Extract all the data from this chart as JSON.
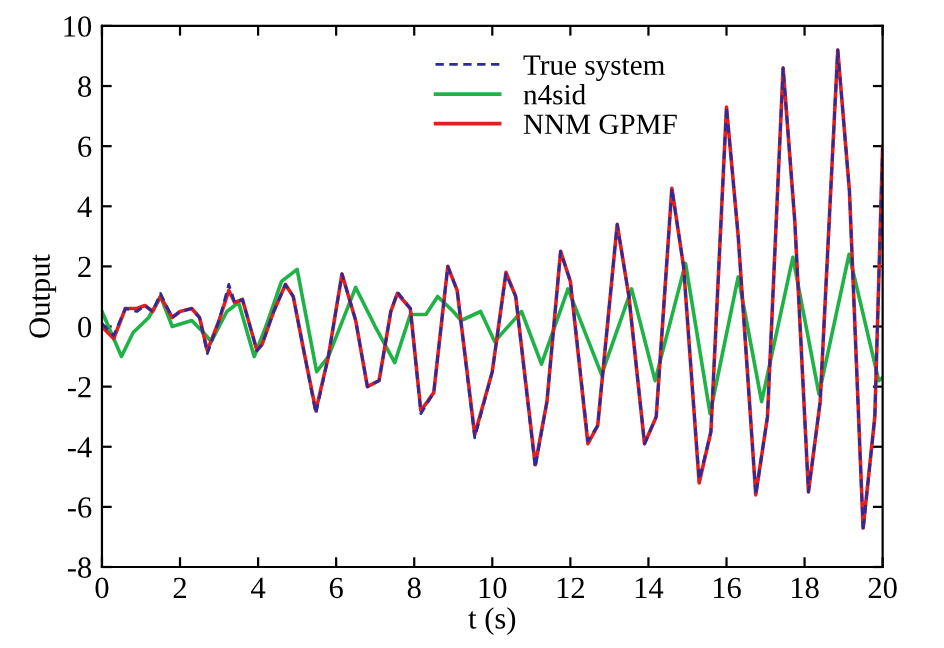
{
  "chart_data": {
    "type": "line",
    "xlabel": "t (s)",
    "ylabel": "Output",
    "xlim": [
      0,
      20
    ],
    "ylim": [
      -8,
      10
    ],
    "xticks": [
      0,
      2,
      4,
      6,
      8,
      10,
      12,
      14,
      16,
      18,
      20
    ],
    "yticks": [
      -8,
      -6,
      -4,
      -2,
      0,
      2,
      4,
      6,
      8,
      10
    ],
    "grid": false,
    "legend": "top right",
    "line_style": "solid",
    "marker": "none",
    "series": [
      {
        "name": "True system",
        "color": "#2b2b9a",
        "line_style": "dashed",
        "x": [
          0,
          0.3,
          0.6,
          0.9,
          1.1,
          1.3,
          1.5,
          1.8,
          2.0,
          2.3,
          2.5,
          2.7,
          3.0,
          3.25,
          3.4,
          3.6,
          3.97,
          4.1,
          4.4,
          4.7,
          4.9,
          5.2,
          5.48,
          5.8,
          6.15,
          6.5,
          6.8,
          7.1,
          7.4,
          7.57,
          7.9,
          8.17,
          8.5,
          8.86,
          9.1,
          9.55,
          10.0,
          10.35,
          10.6,
          11.1,
          11.4,
          11.75,
          12.0,
          12.45,
          12.7,
          13.2,
          13.5,
          13.9,
          14.2,
          14.6,
          14.9,
          15.3,
          15.6,
          16.0,
          16.3,
          16.75,
          17.05,
          17.45,
          17.75,
          18.1,
          18.4,
          18.85,
          19.15,
          19.5,
          19.8,
          20.0
        ],
        "values": [
          0.1,
          -0.3,
          0.6,
          0.5,
          0.7,
          0.5,
          1.1,
          0.3,
          0.5,
          0.6,
          0.3,
          -0.9,
          0.2,
          1.4,
          0.8,
          0.9,
          -0.8,
          -0.6,
          0.5,
          1.4,
          1.0,
          -1.0,
          -2.9,
          -1.0,
          1.75,
          0.2,
          -2.0,
          -1.8,
          0.5,
          1.15,
          0.6,
          -2.9,
          -2.2,
          2.0,
          1.2,
          -3.7,
          -1.5,
          1.75,
          1.0,
          -4.7,
          -2.5,
          2.5,
          1.5,
          -3.8,
          -3.3,
          3.4,
          1.0,
          -3.9,
          -3.0,
          4.6,
          2.0,
          -5.1,
          -3.5,
          7.3,
          3.0,
          -5.6,
          -3.0,
          8.6,
          3.5,
          -5.5,
          -2.5,
          9.2,
          4.5,
          -6.8,
          -3.0,
          6.0
        ]
      },
      {
        "name": "n4sid",
        "color": "#1fb347",
        "x": [
          0,
          0.5,
          0.8,
          1.2,
          1.5,
          1.8,
          2.3,
          2.6,
          2.8,
          3.2,
          3.5,
          3.9,
          4.2,
          4.6,
          5.0,
          5.5,
          5.8,
          6.5,
          7.0,
          7.5,
          7.9,
          8.3,
          8.6,
          9.0,
          9.2,
          9.7,
          10.06,
          10.75,
          11.26,
          11.94,
          12.8,
          13.57,
          14.17,
          14.95,
          15.58,
          16.3,
          16.9,
          17.7,
          18.37,
          19.14,
          19.9,
          20.0
        ],
        "values": [
          0.5,
          -1.0,
          -0.2,
          0.3,
          1.0,
          0.0,
          0.2,
          -0.2,
          -0.5,
          0.5,
          0.8,
          -1.0,
          0.0,
          1.5,
          1.9,
          -1.5,
          -1.0,
          1.3,
          0.0,
          -1.2,
          0.4,
          0.4,
          1.0,
          0.5,
          0.2,
          0.5,
          -0.5,
          0.5,
          -1.25,
          1.25,
          -1.6,
          1.25,
          -1.8,
          2.1,
          -2.9,
          1.65,
          -2.5,
          2.3,
          -2.25,
          2.4,
          -1.8,
          -1.7
        ]
      },
      {
        "name": "NNM GPMF",
        "color": "#e02020",
        "x": [
          0,
          0.3,
          0.6,
          0.9,
          1.1,
          1.3,
          1.5,
          1.8,
          2.0,
          2.3,
          2.5,
          2.7,
          3.0,
          3.25,
          3.4,
          3.6,
          3.97,
          4.1,
          4.4,
          4.7,
          4.9,
          5.2,
          5.48,
          5.8,
          6.15,
          6.5,
          6.8,
          7.1,
          7.4,
          7.57,
          7.9,
          8.17,
          8.5,
          8.86,
          9.1,
          9.55,
          10.0,
          10.35,
          10.6,
          11.1,
          11.4,
          11.75,
          12.0,
          12.45,
          12.7,
          13.2,
          13.5,
          13.9,
          14.2,
          14.6,
          14.9,
          15.3,
          15.6,
          16.0,
          16.3,
          16.75,
          17.05,
          17.45,
          17.75,
          18.1,
          18.4,
          18.85,
          19.15,
          19.5,
          19.8,
          20.0
        ],
        "values": [
          0.0,
          -0.4,
          0.6,
          0.6,
          0.7,
          0.5,
          1.0,
          0.3,
          0.5,
          0.6,
          0.3,
          -0.8,
          0.2,
          1.2,
          0.8,
          0.9,
          -0.8,
          -0.6,
          0.5,
          1.4,
          1.0,
          -1.0,
          -2.8,
          -1.0,
          1.75,
          0.2,
          -2.0,
          -1.8,
          0.5,
          1.1,
          0.6,
          -2.8,
          -2.2,
          2.0,
          1.2,
          -3.6,
          -1.5,
          1.8,
          1.0,
          -4.6,
          -2.5,
          2.5,
          1.5,
          -3.9,
          -3.3,
          3.4,
          1.0,
          -3.9,
          -3.0,
          4.6,
          2.0,
          -5.2,
          -3.5,
          7.3,
          3.0,
          -5.6,
          -3.0,
          8.6,
          3.5,
          -5.5,
          -2.5,
          9.2,
          4.5,
          -6.7,
          -3.0,
          6.0
        ]
      }
    ]
  }
}
